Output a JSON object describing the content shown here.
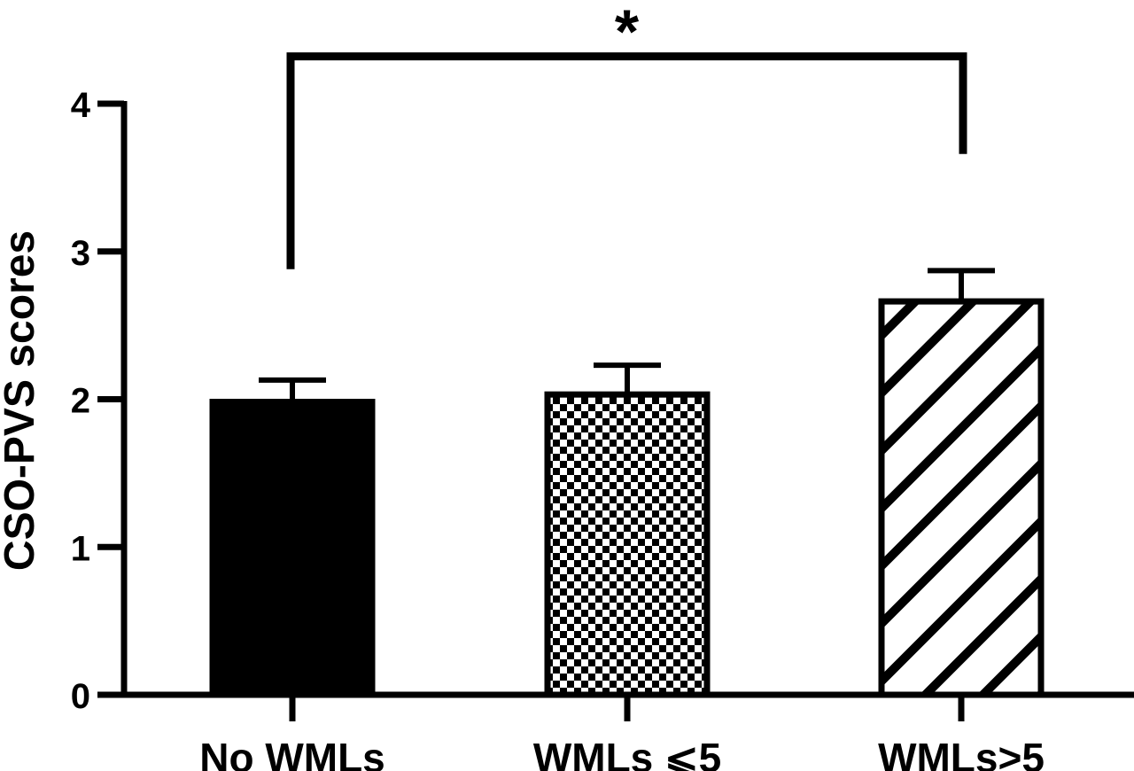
{
  "chart_data": {
    "type": "bar",
    "title": "",
    "xlabel": "",
    "ylabel": "CSO-PVS scores",
    "ylim": [
      0,
      4
    ],
    "yticks": [
      0,
      1,
      2,
      3,
      4
    ],
    "ytick_labels": [
      "0",
      "1",
      "2",
      "3",
      "4"
    ],
    "grid": false,
    "categories": [
      "No WMLs",
      "WMLs ⩽5",
      "WMLs>5"
    ],
    "values": [
      2.0,
      2.05,
      2.68
    ],
    "error_upper": [
      2.13,
      2.23,
      2.87
    ],
    "fill_patterns": [
      "solid",
      "checkerboard",
      "diagonal-stripes"
    ],
    "significance": {
      "from_category": "No WMLs",
      "to_category": "WMLs>5",
      "label": "*",
      "left_leg_bottom": 2.88,
      "right_leg_bottom": 3.66,
      "bracket_top": 4.32
    },
    "colors": {
      "bar_fill": "#000000",
      "pattern_light": "#ffffff",
      "axis": "#000000"
    }
  }
}
